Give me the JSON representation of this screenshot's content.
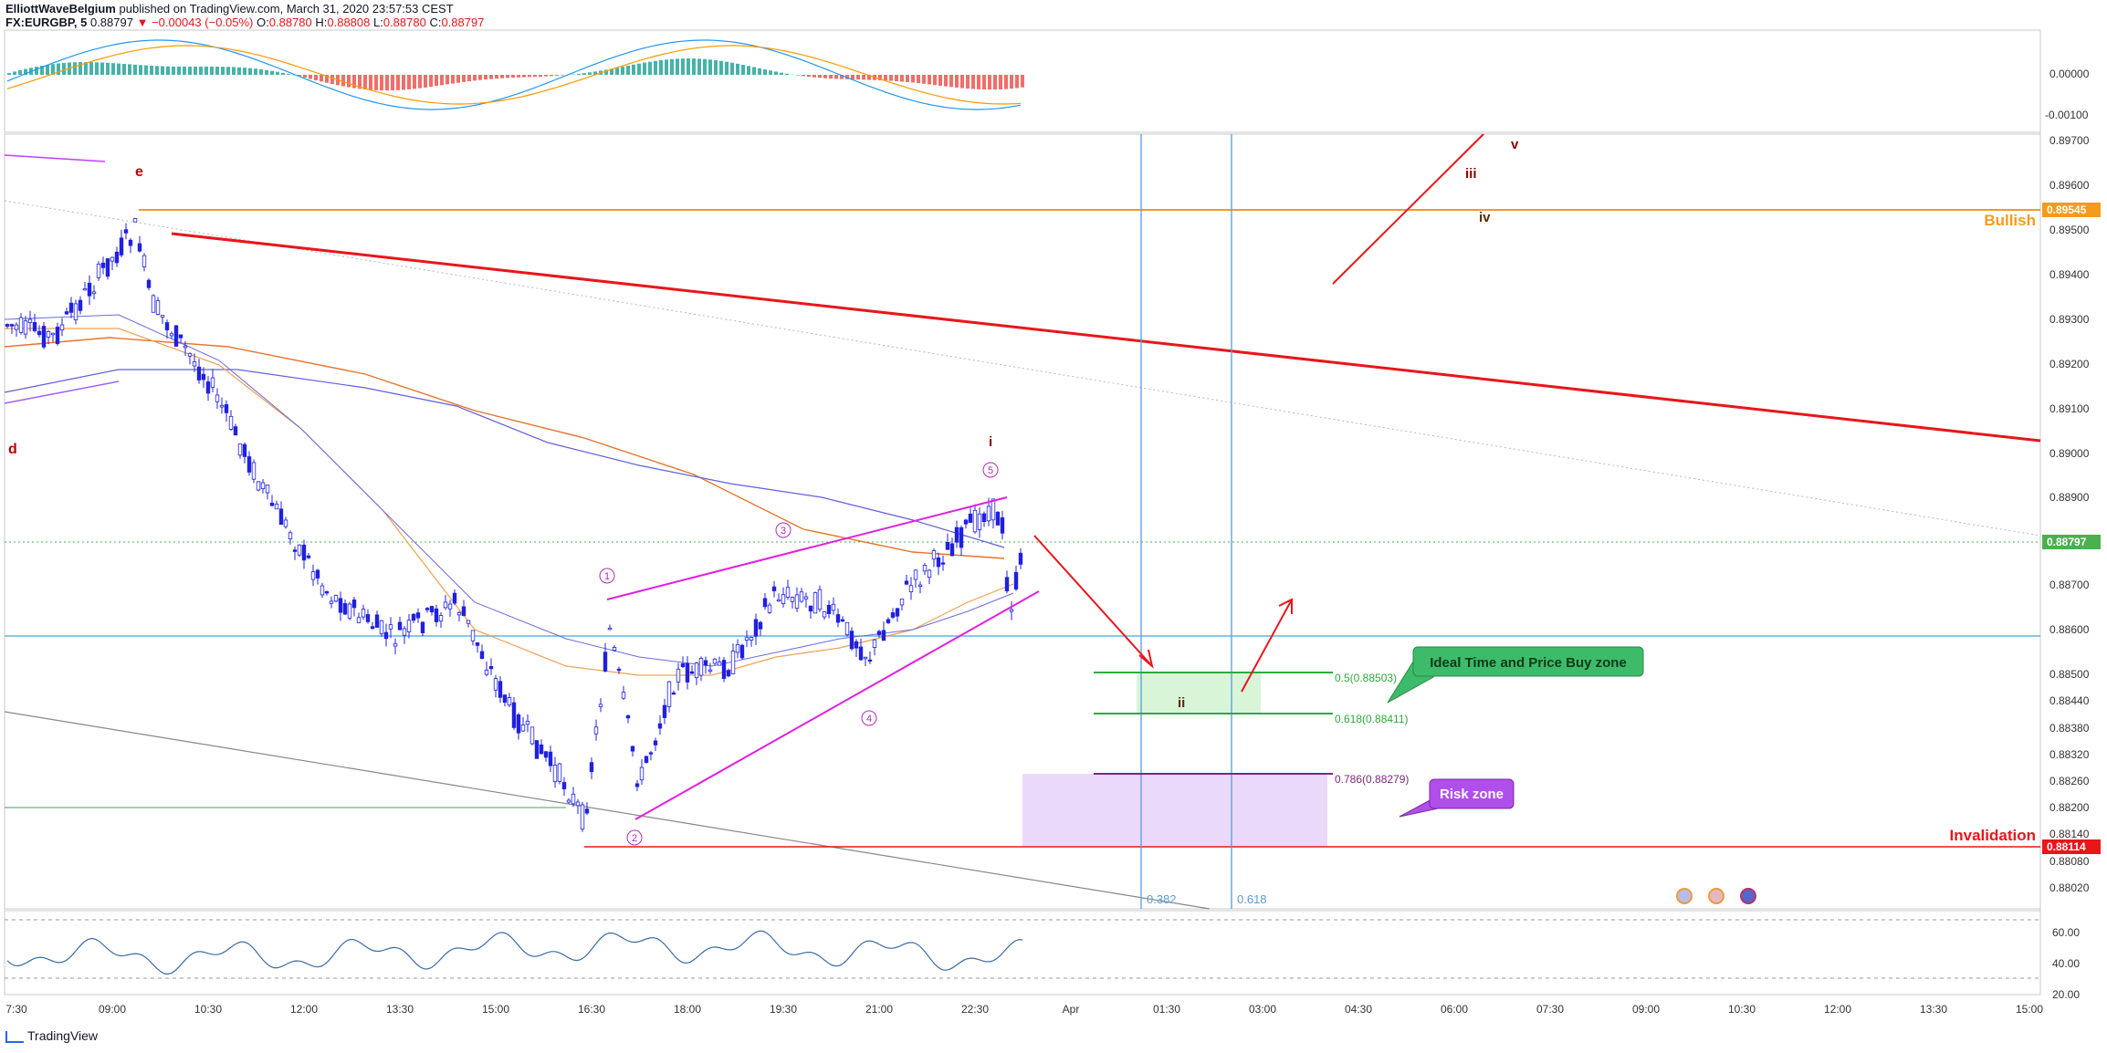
{
  "header": {
    "author": "ElliottWaveBelgium",
    "published": "published on TradingView.com, March 31, 2020 23:57:53 CEST",
    "symbol": "FX:EURGBP, 5",
    "last": "0.88797",
    "change": "▼ −0.00043 (−0.05%)",
    "ohlc_o_label": "O:",
    "ohlc_o": "0.88780",
    "ohlc_h_label": "H:",
    "ohlc_h": "0.88808",
    "ohlc_l_label": "L:",
    "ohlc_l": "0.88780",
    "ohlc_c_label": "C:",
    "ohlc_c": "0.88797"
  },
  "footer": {
    "brand": "TradingView"
  },
  "colors": {
    "candle": "#2020e0",
    "red_trend": "#e8161b",
    "magenta": "#e020e0",
    "orange": "#f59b1c",
    "blue_vline": "#5b9bd5",
    "green": "#2eaa3c",
    "purple_zone": "#ead9fb",
    "green_zone": "#d8f5d8",
    "rsi": "#3b6ba5",
    "macd_blue": "#2196f3",
    "macd_orange": "#ff9800",
    "hist_up": "#26a69a",
    "hist_down": "#ef5350"
  },
  "chart_data": {
    "type": "candlestick",
    "symbol": "FX:EURGBP",
    "timeframe": "5",
    "ylim": [
      0.8796,
      0.8972
    ],
    "price_axis_ticks": [
      "0.89700",
      "0.89600",
      "0.89500",
      "0.89400",
      "0.89300",
      "0.89200",
      "0.89100",
      "0.89000",
      "0.88900",
      "0.88700",
      "0.88600",
      "0.88500",
      "0.88440",
      "0.88380",
      "0.88320",
      "0.88260",
      "0.88200",
      "0.88140",
      "0.88080",
      "0.88020"
    ],
    "time_axis_ticks": [
      "7:30",
      "09:00",
      "10:30",
      "12:00",
      "13:30",
      "15:00",
      "16:30",
      "18:00",
      "19:30",
      "21:00",
      "22:30",
      "Apr",
      "01:30",
      "03:00",
      "04:30",
      "06:00",
      "07:30",
      "09:00",
      "10:30",
      "12:00",
      "13:30",
      "15:00"
    ],
    "price_labels": [
      {
        "value": "0.89545",
        "color": "#f59b1c"
      },
      {
        "value": "0.88797",
        "color": "#4caf50"
      },
      {
        "value": "0.88114",
        "color": "#e8161b"
      }
    ],
    "levels": [
      {
        "label": "Bullish",
        "price": 0.89545
      },
      {
        "label": "Invalidation",
        "price": 0.88114
      }
    ],
    "fib_retracements": [
      {
        "label": "0.5(0.88503)",
        "price": 0.88503
      },
      {
        "label": "0.618(0.88411)",
        "price": 0.88411
      },
      {
        "label": "0.786(0.88279)",
        "price": 0.88279
      }
    ],
    "fib_time": [
      "0.382",
      "0.618"
    ],
    "wave_labels": [
      "e",
      "d",
      "i",
      "ii",
      "iii",
      "iv",
      "v"
    ],
    "circled_waves": [
      "1",
      "2",
      "3",
      "4",
      "5"
    ],
    "callouts": [
      "Ideal Time and Price Buy zone",
      "Risk zone"
    ],
    "macd_axis_ticks": [
      "0.00000",
      "-0.00100"
    ],
    "rsi_axis_ticks": [
      "60.00",
      "40.00",
      "20.00"
    ]
  }
}
